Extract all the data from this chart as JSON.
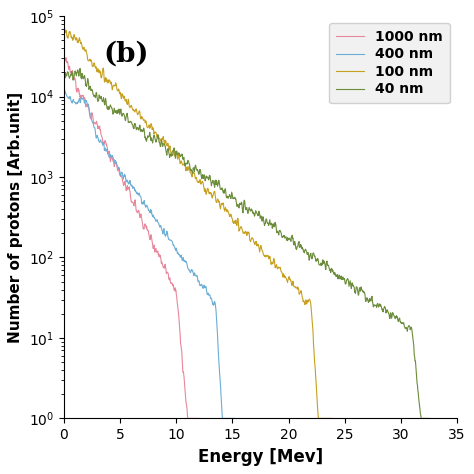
{
  "title": "(b)",
  "xlabel": "Energy [Mev]",
  "ylabel": "Number of protons [Arb.unit]",
  "xlim": [
    0,
    35
  ],
  "ylim": [
    1,
    100000.0
  ],
  "legend_labels": [
    "1000 nm",
    "400 nm",
    "100 nm",
    "40 nm"
  ],
  "legend_colors": [
    "#e8879c",
    "#6baed6",
    "#c8a020",
    "#6b8c3a"
  ],
  "background_color": "#ffffff",
  "seed": 12345,
  "cutoff_1000": 12.0,
  "cutoff_400": 15.2,
  "cutoff_100": 23.8,
  "cutoff_40": 32.5
}
